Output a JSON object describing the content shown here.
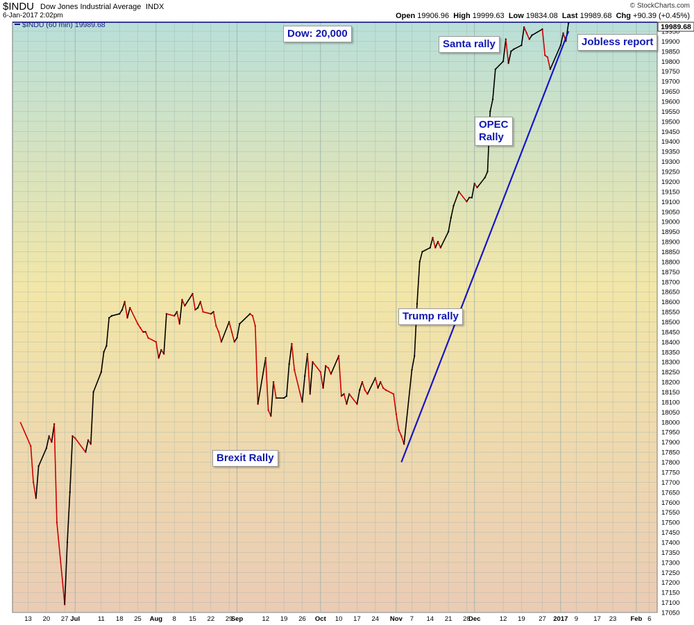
{
  "header": {
    "symbol": "$INDU",
    "company": "Dow Jones Industrial Average",
    "exchange": "INDX",
    "datetime": "6-Jan-2017 2:02pm",
    "watermark": "© StockCharts.com",
    "quote": {
      "open_label": "Open",
      "open": "19906.96",
      "high_label": "High",
      "high": "19999.63",
      "low_label": "Low",
      "low": "19834.08",
      "last_label": "Last",
      "last": "19989.68",
      "chg_label": "Chg",
      "chg": "+90.39 (+0.45%)"
    }
  },
  "legend": {
    "text": "$INDU (60 min) 19989.68"
  },
  "last_price_tag": "19989.68",
  "annotations": {
    "dow": "Dow: 20,000",
    "santa": "Santa rally",
    "jobless": "Jobless report",
    "opec": [
      "OPEC",
      "Rally"
    ],
    "trump": "Trump rally",
    "brexit": "Brexit Rally"
  },
  "colors": {
    "up_bar": "#000000",
    "down_bar": "#cc0000",
    "trendline": "#1515c8",
    "hline": "#00007a",
    "grid": "#9ab0a8",
    "bg_top": "#b9dfd8",
    "bg_mid": "#f2e6a8",
    "bg_bottom": "#ebcbb4"
  },
  "chart_data": {
    "type": "line",
    "series": [
      {
        "name": "$INDU (60 min)",
        "points": [
          [
            "2016-06-10",
            18000
          ],
          [
            "2016-06-14",
            17880
          ],
          [
            "2016-06-15",
            17700
          ],
          [
            "2016-06-16",
            17620
          ],
          [
            "2016-06-17",
            17780
          ],
          [
            "2016-06-20",
            17870
          ],
          [
            "2016-06-21",
            17930
          ],
          [
            "2016-06-22",
            17900
          ],
          [
            "2016-06-23",
            17990
          ],
          [
            "2016-06-24",
            17500
          ],
          [
            "2016-06-27",
            17090
          ],
          [
            "2016-06-28",
            17400
          ],
          [
            "2016-06-29",
            17650
          ],
          [
            "2016-06-30",
            17930
          ],
          [
            "2016-07-01",
            17920
          ],
          [
            "2016-07-05",
            17850
          ],
          [
            "2016-07-06",
            17910
          ],
          [
            "2016-07-07",
            17890
          ],
          [
            "2016-07-08",
            18150
          ],
          [
            "2016-07-11",
            18250
          ],
          [
            "2016-07-12",
            18350
          ],
          [
            "2016-07-13",
            18380
          ],
          [
            "2016-07-14",
            18520
          ],
          [
            "2016-07-15",
            18530
          ],
          [
            "2016-07-18",
            18540
          ],
          [
            "2016-07-19",
            18560
          ],
          [
            "2016-07-20",
            18600
          ],
          [
            "2016-07-21",
            18520
          ],
          [
            "2016-07-22",
            18570
          ],
          [
            "2016-07-25",
            18490
          ],
          [
            "2016-07-26",
            18470
          ],
          [
            "2016-07-27",
            18450
          ],
          [
            "2016-07-28",
            18450
          ],
          [
            "2016-07-29",
            18420
          ],
          [
            "2016-08-01",
            18400
          ],
          [
            "2016-08-02",
            18320
          ],
          [
            "2016-08-03",
            18360
          ],
          [
            "2016-08-04",
            18340
          ],
          [
            "2016-08-05",
            18540
          ],
          [
            "2016-08-08",
            18530
          ],
          [
            "2016-08-09",
            18550
          ],
          [
            "2016-08-10",
            18490
          ],
          [
            "2016-08-11",
            18610
          ],
          [
            "2016-08-12",
            18580
          ],
          [
            "2016-08-15",
            18640
          ],
          [
            "2016-08-16",
            18560
          ],
          [
            "2016-08-17",
            18570
          ],
          [
            "2016-08-18",
            18600
          ],
          [
            "2016-08-19",
            18550
          ],
          [
            "2016-08-22",
            18540
          ],
          [
            "2016-08-23",
            18550
          ],
          [
            "2016-08-24",
            18480
          ],
          [
            "2016-08-25",
            18450
          ],
          [
            "2016-08-26",
            18400
          ],
          [
            "2016-08-29",
            18500
          ],
          [
            "2016-08-30",
            18450
          ],
          [
            "2016-08-31",
            18400
          ],
          [
            "2016-09-01",
            18420
          ],
          [
            "2016-09-02",
            18490
          ],
          [
            "2016-09-06",
            18540
          ],
          [
            "2016-09-07",
            18530
          ],
          [
            "2016-09-08",
            18480
          ],
          [
            "2016-09-09",
            18090
          ],
          [
            "2016-09-12",
            18320
          ],
          [
            "2016-09-13",
            18060
          ],
          [
            "2016-09-14",
            18030
          ],
          [
            "2016-09-15",
            18200
          ],
          [
            "2016-09-16",
            18120
          ],
          [
            "2016-09-19",
            18120
          ],
          [
            "2016-09-20",
            18130
          ],
          [
            "2016-09-21",
            18290
          ],
          [
            "2016-09-22",
            18390
          ],
          [
            "2016-09-23",
            18260
          ],
          [
            "2016-09-26",
            18100
          ],
          [
            "2016-09-27",
            18230
          ],
          [
            "2016-09-28",
            18340
          ],
          [
            "2016-09-29",
            18140
          ],
          [
            "2016-09-30",
            18300
          ],
          [
            "2016-10-03",
            18250
          ],
          [
            "2016-10-04",
            18170
          ],
          [
            "2016-10-05",
            18280
          ],
          [
            "2016-10-06",
            18270
          ],
          [
            "2016-10-07",
            18240
          ],
          [
            "2016-10-10",
            18330
          ],
          [
            "2016-10-11",
            18130
          ],
          [
            "2016-10-12",
            18140
          ],
          [
            "2016-10-13",
            18090
          ],
          [
            "2016-10-14",
            18140
          ],
          [
            "2016-10-17",
            18090
          ],
          [
            "2016-10-18",
            18160
          ],
          [
            "2016-10-19",
            18200
          ],
          [
            "2016-10-20",
            18160
          ],
          [
            "2016-10-21",
            18140
          ],
          [
            "2016-10-24",
            18220
          ],
          [
            "2016-10-25",
            18170
          ],
          [
            "2016-10-26",
            18200
          ],
          [
            "2016-10-27",
            18170
          ],
          [
            "2016-10-28",
            18160
          ],
          [
            "2016-10-31",
            18140
          ],
          [
            "2016-11-01",
            18040
          ],
          [
            "2016-11-02",
            17960
          ],
          [
            "2016-11-03",
            17930
          ],
          [
            "2016-11-04",
            17890
          ],
          [
            "2016-11-07",
            18260
          ],
          [
            "2016-11-08",
            18330
          ],
          [
            "2016-11-09",
            18590
          ],
          [
            "2016-11-10",
            18800
          ],
          [
            "2016-11-11",
            18850
          ],
          [
            "2016-11-14",
            18870
          ],
          [
            "2016-11-15",
            18920
          ],
          [
            "2016-11-16",
            18870
          ],
          [
            "2016-11-17",
            18900
          ],
          [
            "2016-11-18",
            18870
          ],
          [
            "2016-11-21",
            18950
          ],
          [
            "2016-11-22",
            19020
          ],
          [
            "2016-11-23",
            19080
          ],
          [
            "2016-11-25",
            19150
          ],
          [
            "2016-11-28",
            19100
          ],
          [
            "2016-11-29",
            19120
          ],
          [
            "2016-11-30",
            19120
          ],
          [
            "2016-12-01",
            19190
          ],
          [
            "2016-12-02",
            19170
          ],
          [
            "2016-12-05",
            19220
          ],
          [
            "2016-12-06",
            19250
          ],
          [
            "2016-12-07",
            19550
          ],
          [
            "2016-12-08",
            19610
          ],
          [
            "2016-12-09",
            19760
          ],
          [
            "2016-12-12",
            19800
          ],
          [
            "2016-12-13",
            19910
          ],
          [
            "2016-12-14",
            19790
          ],
          [
            "2016-12-15",
            19850
          ],
          [
            "2016-12-16",
            19860
          ],
          [
            "2016-12-19",
            19880
          ],
          [
            "2016-12-20",
            19970
          ],
          [
            "2016-12-21",
            19940
          ],
          [
            "2016-12-22",
            19910
          ],
          [
            "2016-12-23",
            19930
          ],
          [
            "2016-12-27",
            19960
          ],
          [
            "2016-12-28",
            19830
          ],
          [
            "2016-12-29",
            19820
          ],
          [
            "2016-12-30",
            19760
          ],
          [
            "2017-01-03",
            19880
          ],
          [
            "2017-01-04",
            19940
          ],
          [
            "2017-01-05",
            19900
          ],
          [
            "2017-01-06",
            19989.68
          ]
        ]
      }
    ],
    "x_range": [
      "2016-06-07",
      "2017-02-09"
    ],
    "ylim": [
      17050,
      19995
    ],
    "y_ticks": [
      17050,
      17100,
      17150,
      17200,
      17250,
      17300,
      17350,
      17400,
      17450,
      17500,
      17550,
      17600,
      17650,
      17700,
      17750,
      17800,
      17850,
      17900,
      17950,
      18000,
      18050,
      18100,
      18150,
      18200,
      18250,
      18300,
      18350,
      18400,
      18450,
      18500,
      18550,
      18600,
      18650,
      18700,
      18750,
      18800,
      18850,
      18900,
      18950,
      19000,
      19050,
      19100,
      19150,
      19200,
      19250,
      19300,
      19350,
      19400,
      19450,
      19500,
      19550,
      19600,
      19650,
      19700,
      19750,
      19800,
      19850,
      19900,
      19950
    ],
    "x_ticks": [
      {
        "date": "2016-06-13",
        "label": "13",
        "bold": false
      },
      {
        "date": "2016-06-20",
        "label": "20",
        "bold": false
      },
      {
        "date": "2016-06-27",
        "label": "27",
        "bold": false
      },
      {
        "date": "2016-07-01",
        "label": "Jul",
        "bold": true
      },
      {
        "date": "2016-07-11",
        "label": "11",
        "bold": false
      },
      {
        "date": "2016-07-18",
        "label": "18",
        "bold": false
      },
      {
        "date": "2016-07-25",
        "label": "25",
        "bold": false
      },
      {
        "date": "2016-08-01",
        "label": "Aug",
        "bold": true
      },
      {
        "date": "2016-08-08",
        "label": "8",
        "bold": false
      },
      {
        "date": "2016-08-15",
        "label": "15",
        "bold": false
      },
      {
        "date": "2016-08-22",
        "label": "22",
        "bold": false
      },
      {
        "date": "2016-08-29",
        "label": "29",
        "bold": false
      },
      {
        "date": "2016-09-01",
        "label": "Sep",
        "bold": true
      },
      {
        "date": "2016-09-12",
        "label": "12",
        "bold": false
      },
      {
        "date": "2016-09-19",
        "label": "19",
        "bold": false
      },
      {
        "date": "2016-09-26",
        "label": "26",
        "bold": false
      },
      {
        "date": "2016-10-03",
        "label": "Oct",
        "bold": true
      },
      {
        "date": "2016-10-10",
        "label": "10",
        "bold": false
      },
      {
        "date": "2016-10-17",
        "label": "17",
        "bold": false
      },
      {
        "date": "2016-10-24",
        "label": "24",
        "bold": false
      },
      {
        "date": "2016-11-01",
        "label": "Nov",
        "bold": true
      },
      {
        "date": "2016-11-07",
        "label": "7",
        "bold": false
      },
      {
        "date": "2016-11-14",
        "label": "14",
        "bold": false
      },
      {
        "date": "2016-11-21",
        "label": "21",
        "bold": false
      },
      {
        "date": "2016-11-28",
        "label": "28",
        "bold": false
      },
      {
        "date": "2016-12-01",
        "label": "Dec",
        "bold": true
      },
      {
        "date": "2016-12-12",
        "label": "12",
        "bold": false
      },
      {
        "date": "2016-12-19",
        "label": "19",
        "bold": false
      },
      {
        "date": "2016-12-27",
        "label": "27",
        "bold": false
      },
      {
        "date": "2017-01-03",
        "label": "2017",
        "bold": true
      },
      {
        "date": "2017-01-09",
        "label": "9",
        "bold": false
      },
      {
        "date": "2017-01-17",
        "label": "17",
        "bold": false
      },
      {
        "date": "2017-01-23",
        "label": "23",
        "bold": false
      },
      {
        "date": "2017-02-01",
        "label": "Feb",
        "bold": true
      },
      {
        "date": "2017-02-06",
        "label": "6",
        "bold": false
      }
    ],
    "trendline": {
      "from": [
        "2016-11-03",
        17800
      ],
      "to": [
        "2017-01-06",
        19950
      ]
    },
    "hline": 19995,
    "grid": true,
    "legend_position": "top-left"
  }
}
